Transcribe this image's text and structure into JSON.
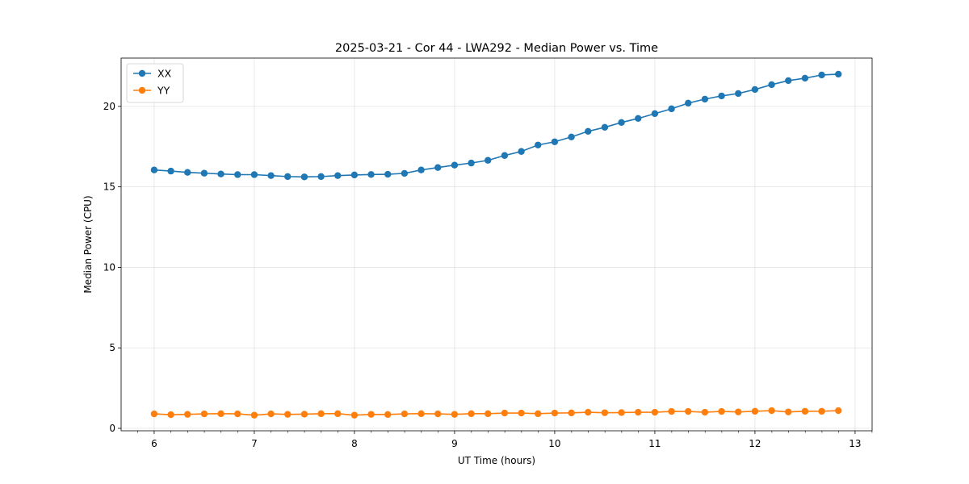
{
  "chart_data": {
    "type": "line",
    "title": "2025-03-21 - Cor 44 - LWA292 - Median Power vs. Time",
    "xlabel": "UT Time (hours)",
    "ylabel": "Median Power (CPU)",
    "xlim": [
      5.67,
      13.17
    ],
    "ylim": [
      -0.15,
      23.0
    ],
    "xticks": [
      6,
      7,
      8,
      9,
      10,
      11,
      12,
      13
    ],
    "xtick_labels": [
      "6",
      "7",
      "8",
      "9",
      "10",
      "11",
      "12",
      "13"
    ],
    "xminor_step": 0.1667,
    "yticks": [
      0,
      5,
      10,
      15,
      20
    ],
    "ytick_labels": [
      "0",
      "5",
      "10",
      "15",
      "20"
    ],
    "grid": true,
    "legend": "top-left",
    "x": [
      6.0,
      6.1667,
      6.3333,
      6.5,
      6.6667,
      6.8333,
      7.0,
      7.1667,
      7.3333,
      7.5,
      7.6667,
      7.8333,
      8.0,
      8.1667,
      8.3333,
      8.5,
      8.6667,
      8.8333,
      9.0,
      9.1667,
      9.3333,
      9.5,
      9.6667,
      9.8333,
      10.0,
      10.1667,
      10.3333,
      10.5,
      10.6667,
      10.8333,
      11.0,
      11.1667,
      11.3333,
      11.5,
      11.6667,
      11.8333,
      12.0,
      12.1667,
      12.3333,
      12.5,
      12.6667,
      12.8333
    ],
    "series": [
      {
        "name": "XX",
        "color": "#1f77b4",
        "values": [
          16.05,
          15.98,
          15.9,
          15.85,
          15.8,
          15.76,
          15.76,
          15.7,
          15.64,
          15.62,
          15.64,
          15.7,
          15.74,
          15.77,
          15.78,
          15.84,
          16.05,
          16.2,
          16.35,
          16.48,
          16.65,
          16.95,
          17.2,
          17.6,
          17.8,
          18.1,
          18.45,
          18.7,
          19.0,
          19.25,
          19.55,
          19.85,
          20.2,
          20.45,
          20.65,
          20.8,
          21.05,
          21.35,
          21.6,
          21.75,
          21.95,
          22.0
        ]
      },
      {
        "name": "YY",
        "color": "#ff7f0e",
        "values": [
          0.9,
          0.85,
          0.87,
          0.9,
          0.91,
          0.9,
          0.82,
          0.9,
          0.87,
          0.88,
          0.91,
          0.91,
          0.82,
          0.87,
          0.86,
          0.9,
          0.91,
          0.9,
          0.87,
          0.91,
          0.91,
          0.95,
          0.95,
          0.91,
          0.95,
          0.96,
          1.0,
          0.97,
          0.98,
          1.0,
          1.0,
          1.05,
          1.05,
          1.0,
          1.05,
          1.02,
          1.06,
          1.1,
          1.02,
          1.06,
          1.06,
          1.1
        ]
      }
    ]
  }
}
